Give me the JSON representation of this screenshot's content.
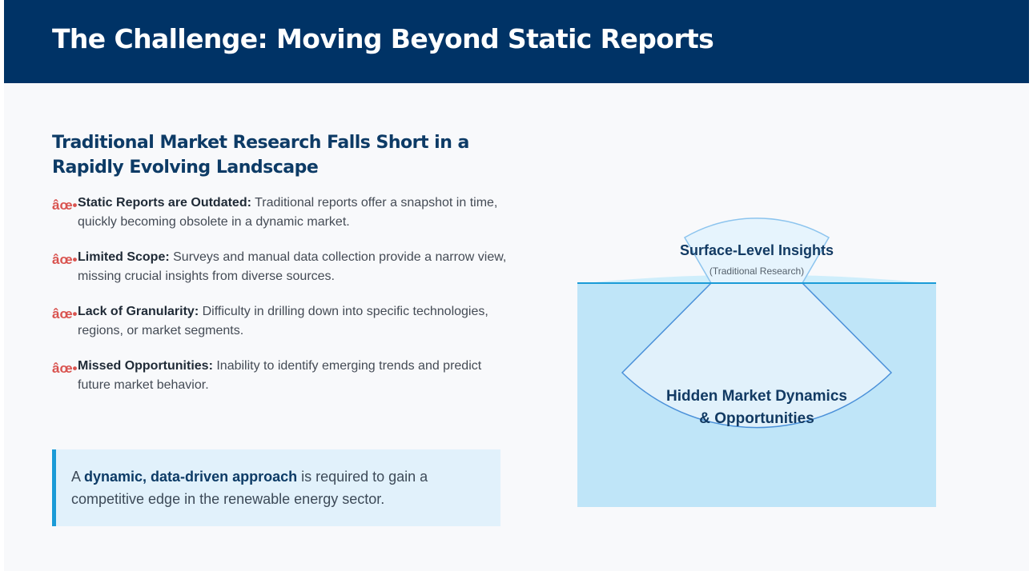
{
  "header": {
    "title": "The Challenge: Moving Beyond Static Reports"
  },
  "section": {
    "subtitle": "Traditional Market Research Falls Short in a Rapidly Evolving Landscape",
    "bullet_marker": "âœ•",
    "bullets": [
      {
        "heading": "Static Reports are Outdated:",
        "text": " Traditional reports offer a snapshot in time, quickly becoming obsolete in a dynamic market."
      },
      {
        "heading": "Limited Scope:",
        "text": " Surveys and manual data collection provide a narrow view, missing crucial insights from diverse sources."
      },
      {
        "heading": "Lack of Granularity:",
        "text": " Difficulty in drilling down into specific technologies, regions, or market segments."
      },
      {
        "heading": "Missed Opportunities:",
        "text": " Inability to identify emerging trends and predict future market behavior."
      }
    ]
  },
  "callout": {
    "prefix": "A ",
    "emphasis": "dynamic, data-driven approach",
    "suffix": " is required to gain a competitive edge in the renewable energy sector."
  },
  "diagram": {
    "surface_title": "Surface-Level Insights",
    "surface_subtitle": "(Traditional Research)",
    "hidden_title_line1": "Hidden Market Dynamics",
    "hidden_title_line2": "& Opportunities"
  },
  "colors": {
    "header_bg": "#003366",
    "accent": "#1a9bd7",
    "marker": "#d9534f",
    "water": "#bfe5f8"
  }
}
